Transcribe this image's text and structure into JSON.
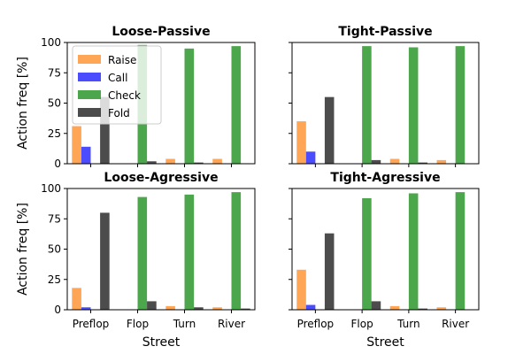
{
  "chart_data": {
    "type": "bar",
    "categories": [
      "Preflop",
      "Flop",
      "Turn",
      "River"
    ],
    "xlabel": "Street",
    "ylabel": "Action freq [%]",
    "ylim": [
      0,
      100
    ],
    "yticks": [
      0,
      25,
      50,
      75,
      100
    ],
    "legend": {
      "placement": "upper-left of first panel",
      "entries": [
        "Raise",
        "Call",
        "Check",
        "Fold"
      ]
    },
    "colors": {
      "Raise": "#ff7f0e",
      "Call": "#0000ff",
      "Check": "#008000",
      "Fold": "#000000"
    },
    "bar_opacity": 0.7,
    "panels": [
      {
        "title": "Loose-Passive",
        "series": [
          {
            "name": "Raise",
            "values": [
              31,
              0,
              4,
              4
            ]
          },
          {
            "name": "Call",
            "values": [
              14,
              0,
              0,
              0
            ]
          },
          {
            "name": "Check",
            "values": [
              0,
              98,
              95,
              97
            ]
          },
          {
            "name": "Fold",
            "values": [
              55,
              2,
              1,
              0
            ]
          }
        ]
      },
      {
        "title": "Tight-Passive",
        "series": [
          {
            "name": "Raise",
            "values": [
              35,
              0,
              4,
              3
            ]
          },
          {
            "name": "Call",
            "values": [
              10,
              0,
              0,
              0
            ]
          },
          {
            "name": "Check",
            "values": [
              0,
              97,
              96,
              97
            ]
          },
          {
            "name": "Fold",
            "values": [
              55,
              3,
              1,
              0
            ]
          }
        ]
      },
      {
        "title": "Loose-Agressive",
        "series": [
          {
            "name": "Raise",
            "values": [
              18,
              0,
              3,
              2
            ]
          },
          {
            "name": "Call",
            "values": [
              2,
              0,
              0,
              0
            ]
          },
          {
            "name": "Check",
            "values": [
              0,
              93,
              95,
              97
            ]
          },
          {
            "name": "Fold",
            "values": [
              80,
              7,
              2,
              1
            ]
          }
        ]
      },
      {
        "title": "Tight-Agressive",
        "series": [
          {
            "name": "Raise",
            "values": [
              33,
              0,
              3,
              2
            ]
          },
          {
            "name": "Call",
            "values": [
              4,
              0,
              0,
              0
            ]
          },
          {
            "name": "Check",
            "values": [
              0,
              92,
              96,
              97
            ]
          },
          {
            "name": "Fold",
            "values": [
              63,
              7,
              1,
              0
            ]
          }
        ]
      }
    ]
  }
}
